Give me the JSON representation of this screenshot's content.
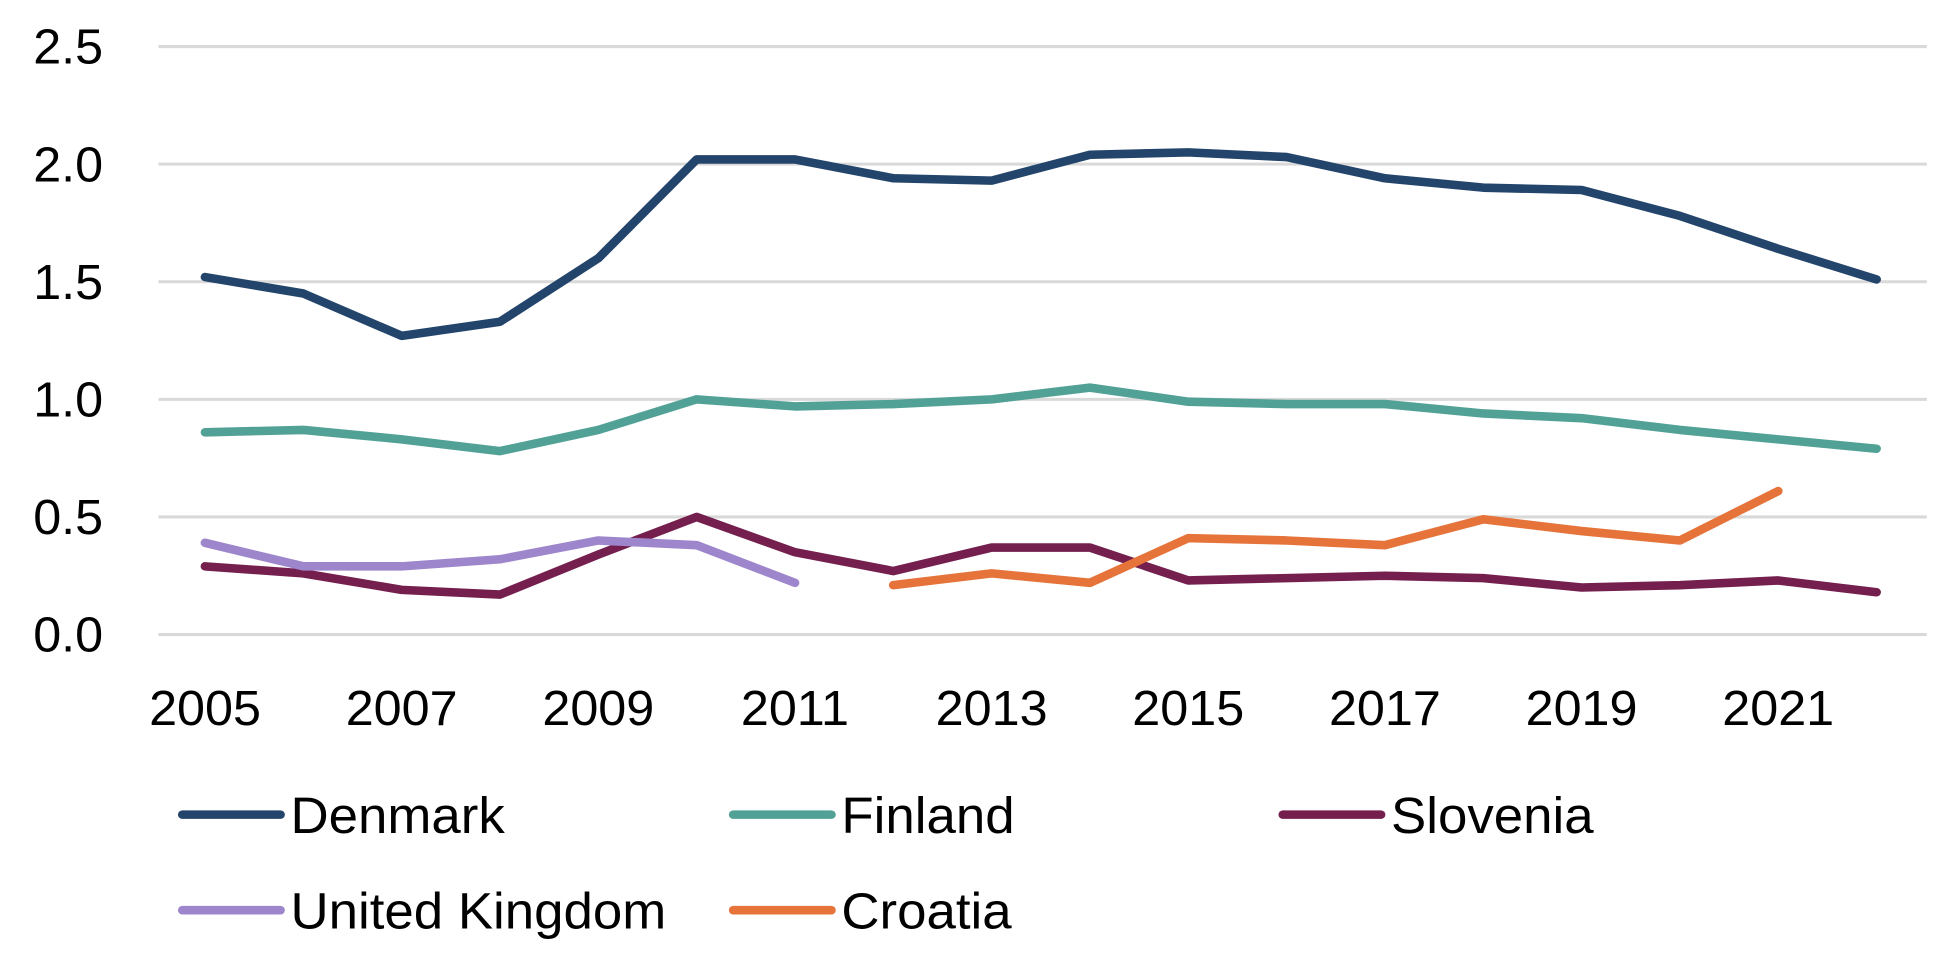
{
  "chart_data": {
    "type": "line",
    "title": "",
    "xlabel": "",
    "ylabel": "",
    "x": [
      2005,
      2006,
      2007,
      2008,
      2009,
      2010,
      2011,
      2012,
      2013,
      2014,
      2015,
      2016,
      2017,
      2018,
      2019,
      2020,
      2021,
      2022
    ],
    "x_tick_labels": [
      "2005",
      "2007",
      "2009",
      "2011",
      "2013",
      "2015",
      "2017",
      "2019",
      "2021"
    ],
    "y_tick_labels": [
      "0.0",
      "0.5",
      "1.0",
      "1.5",
      "2.0",
      "2.5"
    ],
    "ylim": [
      0,
      2.5
    ],
    "grid": "horizontal",
    "legend_position": "bottom",
    "series": [
      {
        "name": "Denmark",
        "color": "#23446b",
        "values": [
          1.52,
          1.45,
          1.27,
          1.33,
          1.6,
          2.02,
          2.02,
          1.94,
          1.93,
          2.04,
          2.05,
          2.03,
          1.94,
          1.9,
          1.89,
          1.78,
          1.64,
          1.51
        ]
      },
      {
        "name": "Finland",
        "color": "#52a196",
        "values": [
          0.86,
          0.87,
          0.83,
          0.78,
          0.87,
          1.0,
          0.97,
          0.98,
          1.0,
          1.05,
          0.99,
          0.98,
          0.98,
          0.94,
          0.92,
          0.87,
          0.83,
          0.79
        ]
      },
      {
        "name": "Slovenia",
        "color": "#741f4e",
        "values": [
          0.29,
          0.26,
          0.19,
          0.17,
          0.34,
          0.5,
          0.35,
          0.27,
          0.37,
          0.37,
          0.23,
          0.24,
          0.25,
          0.24,
          0.2,
          0.21,
          0.23,
          0.18
        ]
      },
      {
        "name": "United Kingdom",
        "color": "#9e86cc",
        "values": [
          0.39,
          0.29,
          0.29,
          0.32,
          0.4,
          0.38,
          0.22,
          null,
          null,
          null,
          null,
          null,
          null,
          null,
          null,
          null,
          null,
          null
        ]
      },
      {
        "name": "Croatia",
        "color": "#e5733a",
        "values": [
          null,
          null,
          null,
          null,
          null,
          null,
          null,
          0.21,
          0.26,
          0.22,
          0.41,
          0.4,
          0.38,
          0.49,
          0.44,
          0.4,
          0.61,
          null
        ]
      }
    ]
  }
}
